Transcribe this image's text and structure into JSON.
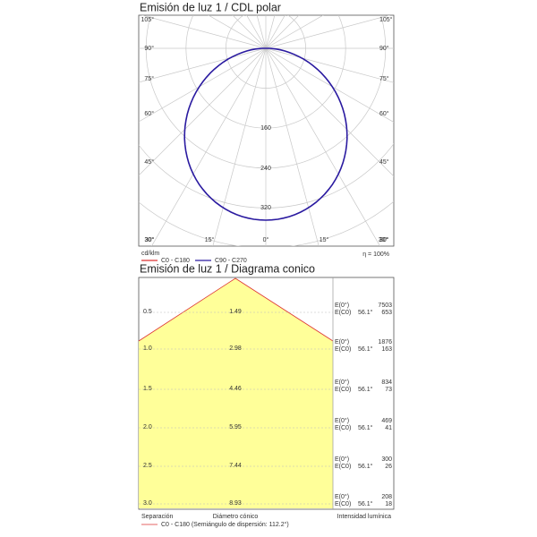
{
  "polar": {
    "title": "Emisión de luz 1 / CDL polar",
    "left_angles": [
      "105°",
      "90°",
      "75°",
      "60°",
      "45°",
      "30°"
    ],
    "right_angles": [
      "105°",
      "90°",
      "75°",
      "60°",
      "45°",
      "30°"
    ],
    "bottom_angles": [
      "30°",
      "15°",
      "0°",
      "15°",
      "30°"
    ],
    "rings": [
      "160",
      "240",
      "320"
    ],
    "unit": "cd/klm",
    "efficiency": "η = 100%",
    "legend": [
      "C0 - C180",
      "C90 - C270"
    ]
  },
  "cone": {
    "title": "Emisión de luz 1 / Diagrama conico",
    "rows": [
      {
        "separation": "0.5",
        "diameter": "1.49",
        "e0": "7503",
        "ec0": "653"
      },
      {
        "separation": "1.0",
        "diameter": "2.98",
        "e0": "1876",
        "ec0": "163"
      },
      {
        "separation": "1.5",
        "diameter": "4.46",
        "e0": "834",
        "ec0": "73"
      },
      {
        "separation": "2.0",
        "diameter": "5.95",
        "e0": "469",
        "ec0": "41"
      },
      {
        "separation": "2.5",
        "diameter": "7.44",
        "e0": "300",
        "ec0": "26"
      },
      {
        "separation": "3.0",
        "diameter": "8.93",
        "e0": "208",
        "ec0": "18"
      }
    ],
    "e0_label": "E(0°)",
    "ec0_label": "E(C0)",
    "angle": "56.1°",
    "footer": [
      "Separación",
      "Diámetro cónico",
      "Intensidad lumínica"
    ],
    "legend": "C0 - C180 (Semiángulo de dispersión: 112.2°)"
  }
}
